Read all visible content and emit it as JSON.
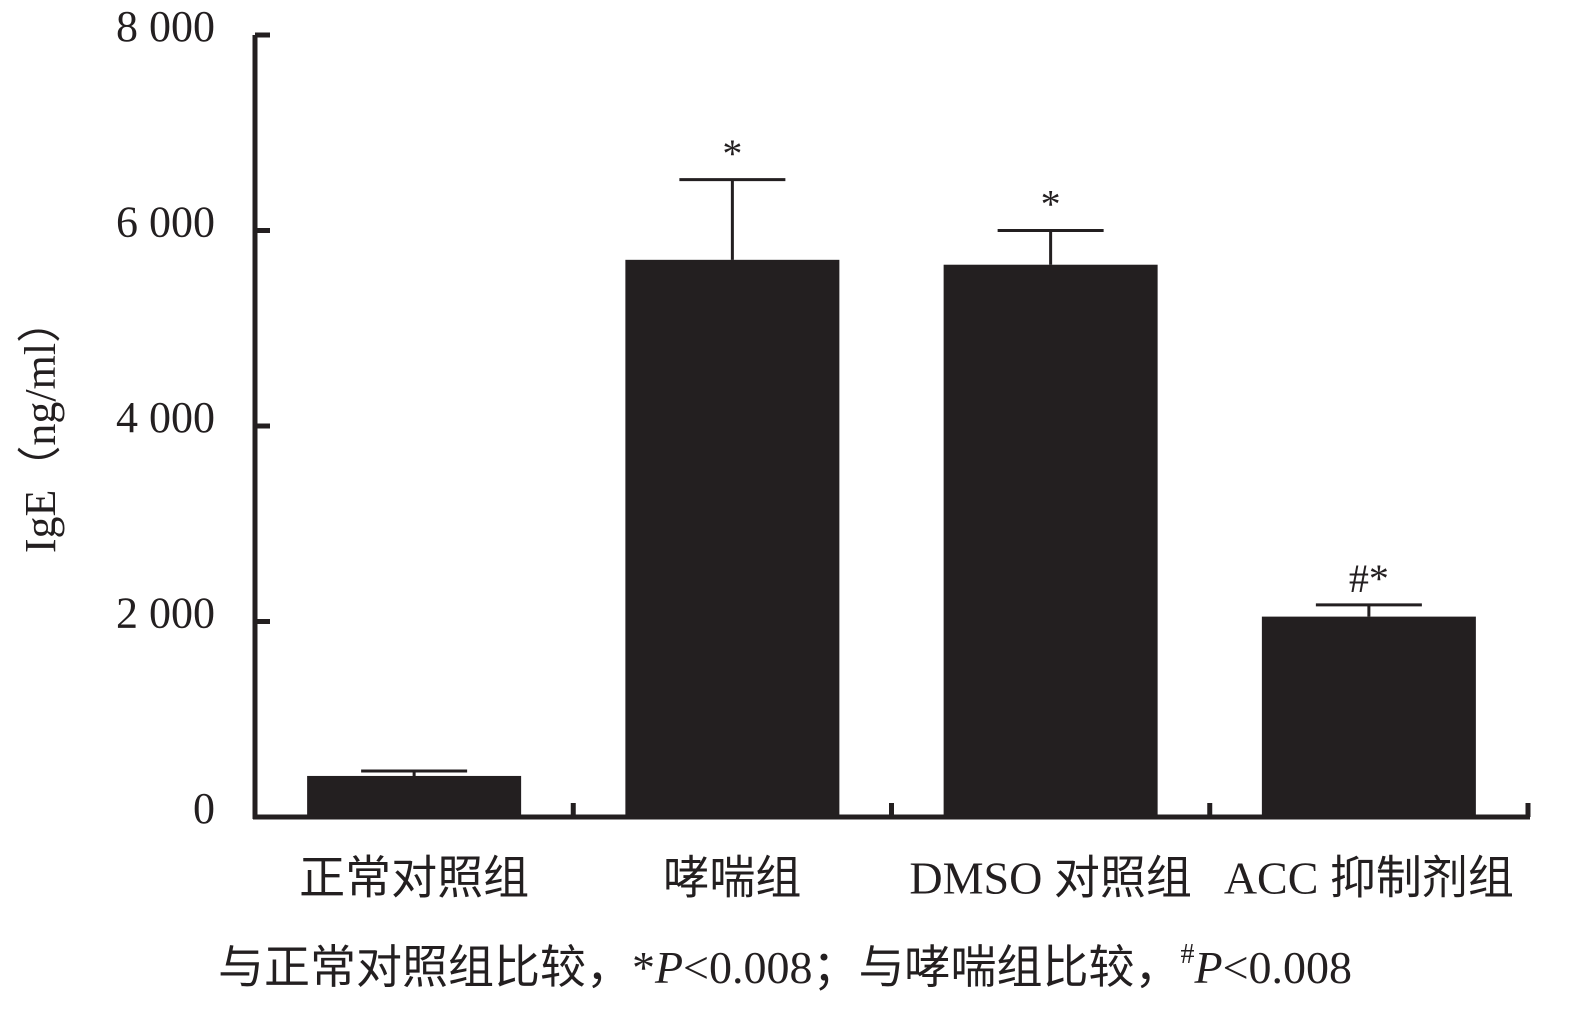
{
  "chart_data": {
    "type": "bar",
    "y_label": "IgE（ng/ml）",
    "categories": [
      "正常对照组",
      "哮喘组",
      "DMSO 对照组",
      "ACC 抑制剂组"
    ],
    "values": [
      420,
      5700,
      5650,
      2050
    ],
    "errors": [
      50,
      820,
      350,
      120
    ],
    "significance": [
      null,
      "*",
      "*",
      "#*"
    ],
    "color": "#231f20",
    "ylim": [
      0,
      8000
    ],
    "yticks": [
      0,
      {
        "value": 2000,
        "label": "2 000"
      },
      {
        "value": 4000,
        "label": "4 000"
      },
      {
        "value": 6000,
        "label": "6 000"
      },
      {
        "value": 8000,
        "label": "8 000"
      }
    ],
    "footnote": [
      "与正常对照组比较，",
      "*",
      "P",
      "<0.008；与哮喘组比较，",
      "#",
      "P",
      "<0.008"
    ]
  }
}
